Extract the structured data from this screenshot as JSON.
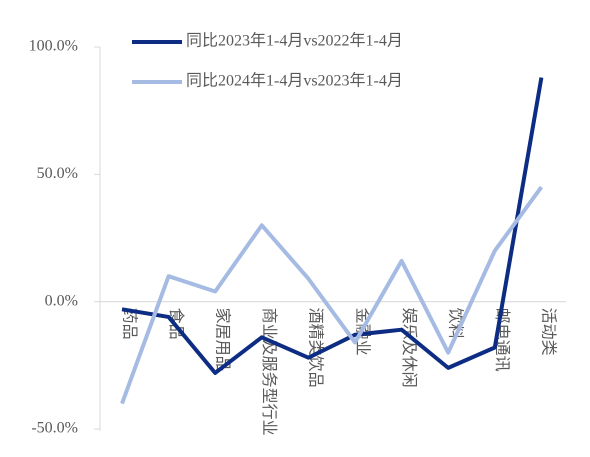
{
  "chart_data": {
    "type": "line",
    "categories": [
      "药品",
      "食品",
      "家居用品",
      "商业及服务型行业",
      "酒精类饮品",
      "金融业",
      "娱乐及休闲",
      "饮料",
      "邮电通讯",
      "活动类"
    ],
    "series": [
      {
        "name": "同比2023年1-4月vs2022年1-4月",
        "color": "#0d2c83",
        "values": [
          -3,
          -6,
          -28,
          -14,
          -22,
          -13,
          -11,
          -26,
          -18,
          88
        ]
      },
      {
        "name": "同比2024年1-4月vs2023年1-4月",
        "color": "#a6bbe3",
        "values": [
          -40,
          10,
          4,
          30,
          9,
          -16,
          16,
          -20,
          20,
          45
        ]
      }
    ],
    "ylim": [
      -50,
      100
    ],
    "yticks": [
      {
        "value": -50,
        "label": "-50.0%"
      },
      {
        "value": 0,
        "label": "0.0%"
      },
      {
        "value": 50,
        "label": "50.0%"
      },
      {
        "value": 100,
        "label": "100.0%"
      }
    ],
    "legend": "top"
  }
}
